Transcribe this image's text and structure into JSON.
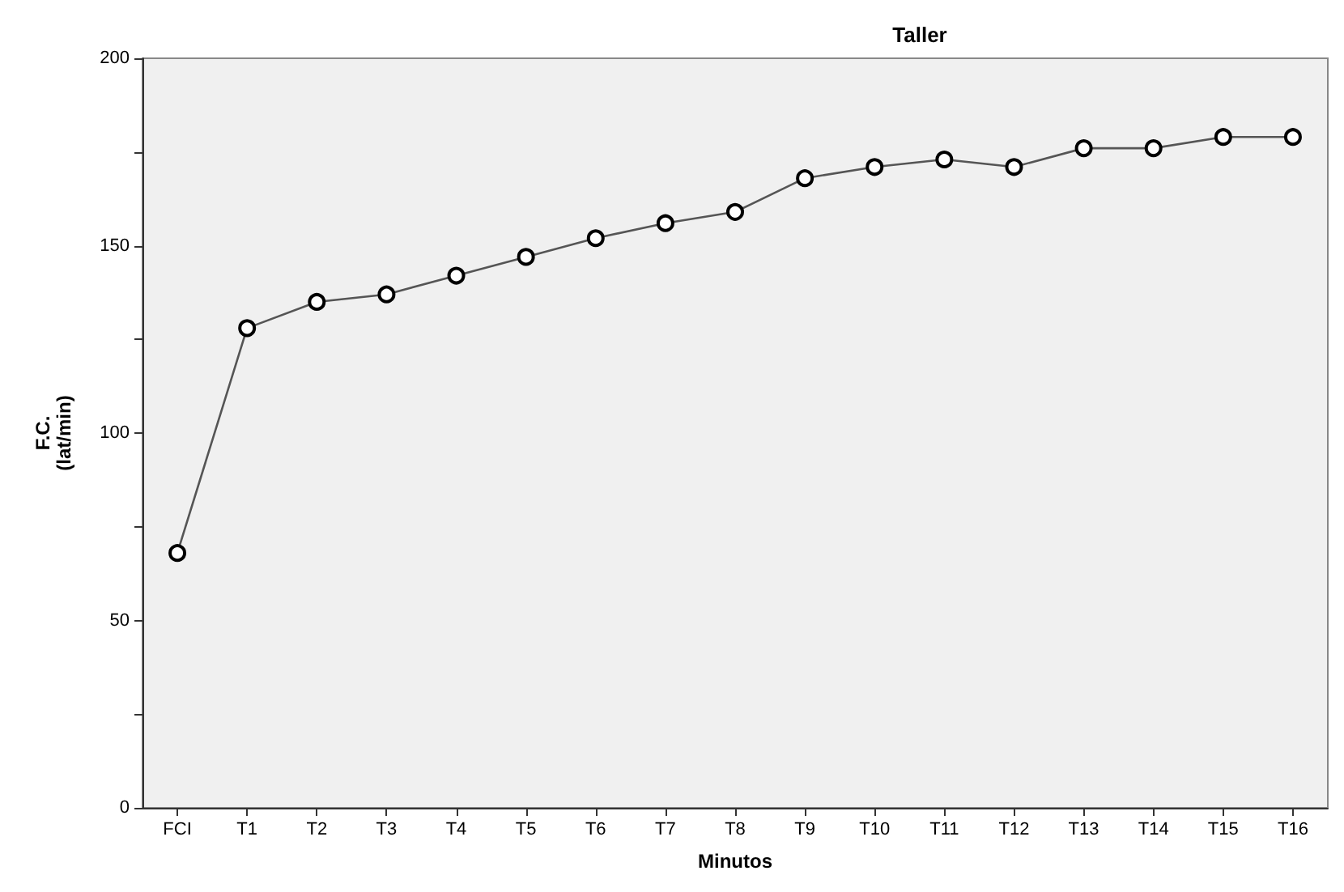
{
  "chart_data": {
    "type": "line",
    "title": "Taller",
    "xlabel": "Minutos",
    "ylabel": "F.C.\n(lat/min)",
    "categories": [
      "FCI",
      "T1",
      "T2",
      "T3",
      "T4",
      "T5",
      "T6",
      "T7",
      "T8",
      "T9",
      "T10",
      "T11",
      "T12",
      "T13",
      "T14",
      "T15",
      "T16"
    ],
    "series": [
      {
        "color": "#555555",
        "values": [
          68,
          128,
          135,
          137,
          142,
          147,
          152,
          156,
          159,
          168,
          171,
          173,
          171,
          176,
          176,
          179,
          179
        ]
      }
    ],
    "ylim": [
      0,
      200
    ],
    "yticks": [
      0,
      {
        "value": 25,
        "label": null
      },
      50,
      {
        "value": 75,
        "label": null
      },
      100,
      {
        "value": 125,
        "label": null
      },
      150,
      {
        "value": 175,
        "label": null
      },
      200
    ],
    "grid": false,
    "marker": "circle",
    "line_style": "solid"
  }
}
